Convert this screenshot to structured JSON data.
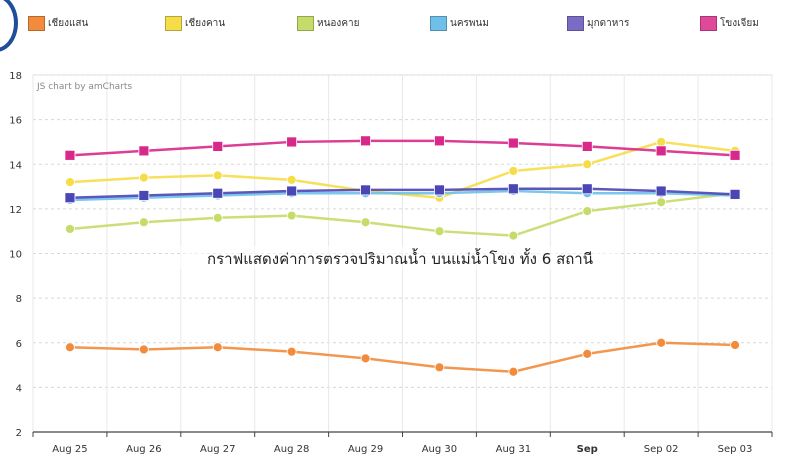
{
  "legend": [
    {
      "label": "เชียงแสน",
      "color": "#f28c3c"
    },
    {
      "label": "เชียงคาน",
      "color": "#f5dd4a"
    },
    {
      "label": "หนองคาย",
      "color": "#c5dc6a"
    },
    {
      "label": "นครพนม",
      "color": "#6ec0ea"
    },
    {
      "label": "มุกดาหาร",
      "color": "#7a6cc4"
    },
    {
      "label": "โขงเจียม",
      "color": "#e0489a"
    }
  ],
  "credit": "JS chart by amCharts",
  "chart_data": {
    "type": "line",
    "title": "กราฟแสดงค่าการตรวจปริมาณน้ำ บนแม่น้ำโขง ทั้ง 6 สถานี",
    "categories": [
      "Aug 25",
      "Aug 26",
      "Aug 27",
      "Aug 28",
      "Aug 29",
      "Aug 30",
      "Aug 31",
      "Sep",
      "Sep 02",
      "Sep 03"
    ],
    "bold_category": "Sep",
    "ylim": [
      2,
      18
    ],
    "yticks": [
      2,
      4,
      6,
      8,
      10,
      12,
      14,
      16,
      18
    ],
    "grid": true,
    "legend_position": "top",
    "series": [
      {
        "name": "เชียงแสน",
        "color": "#f28c3c",
        "marker": "circle",
        "values": [
          5.8,
          5.7,
          5.8,
          5.6,
          5.3,
          4.9,
          4.7,
          5.5,
          6.0,
          5.9
        ]
      },
      {
        "name": "เชียงคาน",
        "color": "#f5dd4a",
        "marker": "circle",
        "values": [
          13.2,
          13.4,
          13.5,
          13.3,
          12.8,
          12.5,
          13.7,
          14.0,
          15.0,
          14.6
        ]
      },
      {
        "name": "หนองคาย",
        "color": "#c5dc6a",
        "marker": "circle",
        "values": [
          11.1,
          11.4,
          11.6,
          11.7,
          11.4,
          11.0,
          10.8,
          11.9,
          12.3,
          12.7
        ]
      },
      {
        "name": "นครพนม",
        "color": "#6ec0ea",
        "marker": "circle",
        "values": [
          12.4,
          12.5,
          12.6,
          12.7,
          12.7,
          12.7,
          12.8,
          12.7,
          12.7,
          12.6
        ]
      },
      {
        "name": "มุกดาหาร",
        "color": "#4a46b4",
        "marker": "square",
        "values": [
          12.5,
          12.6,
          12.7,
          12.8,
          12.85,
          12.85,
          12.9,
          12.9,
          12.8,
          12.65
        ]
      },
      {
        "name": "โขงเจียม",
        "color": "#d8288a",
        "marker": "square",
        "values": [
          14.4,
          14.6,
          14.8,
          15.0,
          15.05,
          15.05,
          14.95,
          14.8,
          14.6,
          14.4
        ]
      }
    ]
  }
}
